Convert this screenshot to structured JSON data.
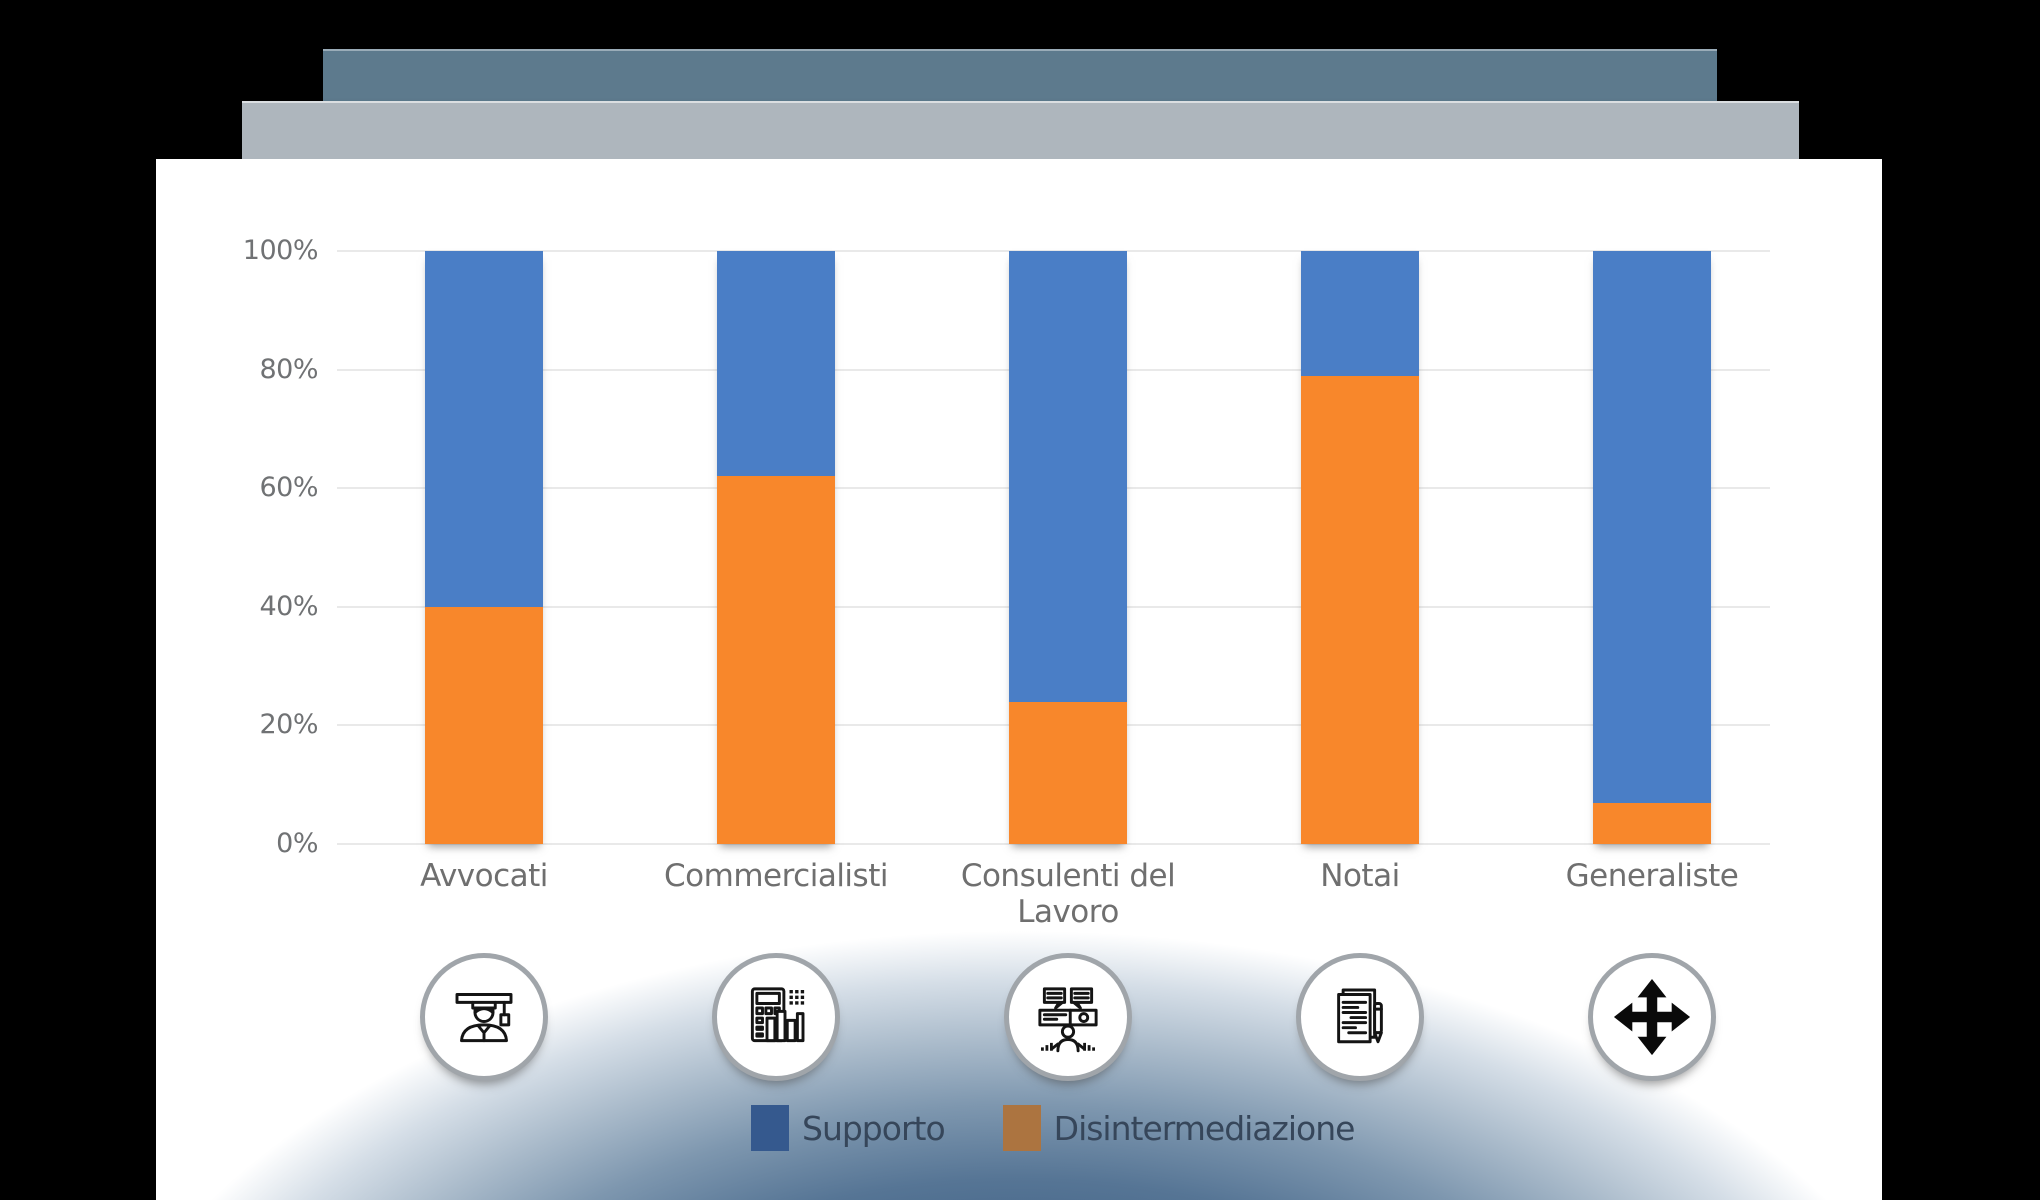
{
  "window_chrome": {
    "top_bar_color": "#5d7a8d",
    "secondary_bar_color": "#aeb6bd"
  },
  "chart_data": {
    "type": "bar",
    "subtype": "stacked-percent-column",
    "title": "",
    "categories": [
      "Avvocati",
      "Commercialisti",
      "Consulenti del Lavoro",
      "Notai",
      "Generaliste"
    ],
    "series": [
      {
        "name": "Supporto",
        "color": "#4a7ec6",
        "values": [
          60,
          38,
          76,
          21,
          93
        ]
      },
      {
        "name": "Disintermediazione",
        "color": "#f8872b",
        "values": [
          40,
          62,
          24,
          79,
          7
        ]
      }
    ],
    "stack_order_bottom_to_top": [
      "Disintermediazione",
      "Supporto"
    ],
    "y_axis": {
      "ticks": [
        "100%",
        "80%",
        "60%",
        "40%",
        "20%",
        "0%"
      ],
      "tick_values": [
        100,
        80,
        60,
        40,
        20,
        0
      ],
      "range": [
        0,
        100
      ]
    },
    "grid": true,
    "gridline_color": "#e9e9e9",
    "axis_label_color": "#707274",
    "category_label_color": "#6f6f6f",
    "legend_position": "bottom",
    "legend": [
      {
        "label": "Supporto",
        "swatch_color": "#35598e"
      },
      {
        "label": "Disintermediazione",
        "swatch_color": "#ac7440"
      }
    ],
    "category_icons": [
      "graduate-person-icon",
      "calculator-with-chart-icon",
      "consultant-speech-bubbles-icon",
      "document-with-pen-icon",
      "four-way-arrows-icon"
    ]
  }
}
